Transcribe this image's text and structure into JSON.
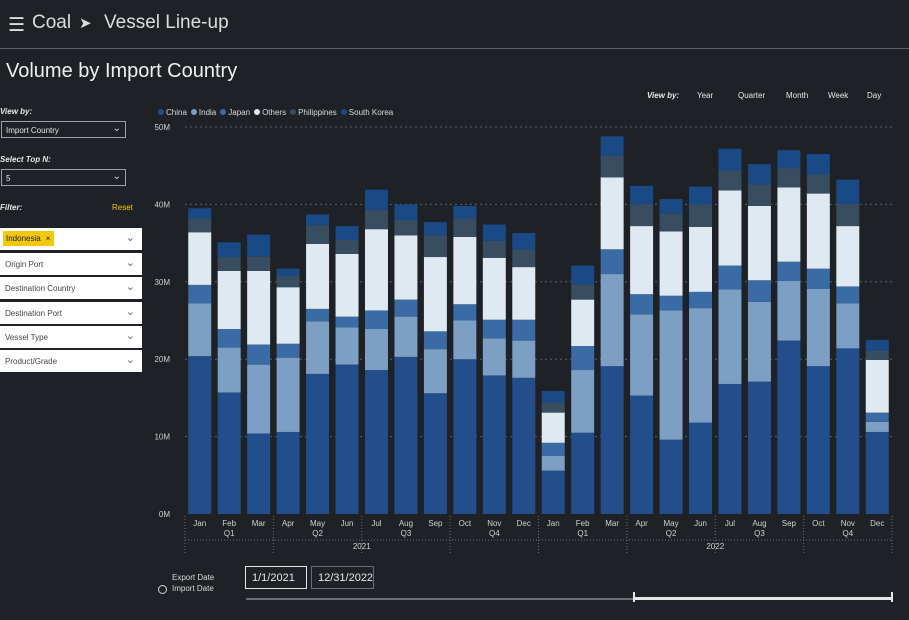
{
  "header": {
    "menu_icon": "hamburger-icon",
    "breadcrumb": [
      "Coal",
      "Vessel Line-up"
    ],
    "separator_icon": "arrow-right-icon"
  },
  "page_title": "Volume by Import Country",
  "sidebar": {
    "view_by_label": "View by:",
    "view_by_value": "Import Country",
    "top_n_label": "Select Top N:",
    "top_n_value": "5",
    "filter_label": "Filter:",
    "reset_label": "Reset",
    "filters": [
      {
        "label": "",
        "chip": "Indonesia"
      },
      {
        "label": "Origin Port"
      },
      {
        "label": "Destination Country"
      },
      {
        "label": "Destination Port"
      },
      {
        "label": "Vessel Type"
      },
      {
        "label": "Product/Grade"
      }
    ]
  },
  "view_by": {
    "label": "View by:",
    "options": [
      "Year",
      "Quarter",
      "Month",
      "Week",
      "Day"
    ]
  },
  "chart_data": {
    "type": "bar",
    "stacked": true,
    "legend_position": "top-left",
    "grid": true,
    "ylim": [
      0,
      50
    ],
    "yticks": [
      "0M",
      "10M",
      "20M",
      "30M",
      "40M",
      "50M"
    ],
    "categories": [
      "Jan",
      "Feb",
      "Mar",
      "Apr",
      "May",
      "Jun",
      "Jul",
      "Aug",
      "Sep",
      "Oct",
      "Nov",
      "Dec",
      "Jan",
      "Feb",
      "Mar",
      "Apr",
      "May",
      "Jun",
      "Jul",
      "Aug",
      "Sep",
      "Oct",
      "Nov",
      "Dec"
    ],
    "quarters": [
      {
        "label": "Q1",
        "year": "2021"
      },
      {
        "label": "Q2",
        "year": "2021"
      },
      {
        "label": "Q3",
        "year": "2021"
      },
      {
        "label": "Q4",
        "year": "2021"
      },
      {
        "label": "Q1",
        "year": "2022"
      },
      {
        "label": "Q2",
        "year": "2022"
      },
      {
        "label": "Q3",
        "year": "2022"
      },
      {
        "label": "Q4",
        "year": "2022"
      }
    ],
    "years": [
      "2021",
      "2022"
    ],
    "series": [
      {
        "name": "China",
        "color": "#234e8c",
        "values": [
          20.4,
          15.7,
          10.4,
          10.6,
          18.1,
          19.3,
          18.6,
          20.3,
          15.6,
          20.0,
          17.9,
          17.6,
          5.6,
          10.5,
          19.1,
          15.3,
          9.6,
          11.8,
          16.8,
          17.1,
          22.4,
          19.1,
          21.4,
          10.6
        ]
      },
      {
        "name": "India",
        "color": "#7d9fc3",
        "values": [
          6.8,
          5.8,
          8.9,
          9.6,
          6.8,
          4.8,
          5.3,
          5.2,
          5.7,
          5.0,
          4.8,
          4.8,
          1.9,
          8.1,
          11.9,
          10.5,
          16.7,
          14.8,
          12.2,
          10.3,
          7.7,
          10.0,
          5.8,
          1.3
        ]
      },
      {
        "name": "Japan",
        "color": "#3a6ba5",
        "values": [
          2.4,
          2.4,
          2.6,
          1.8,
          1.6,
          1.4,
          2.4,
          2.2,
          2.3,
          2.1,
          2.4,
          2.7,
          1.7,
          3.1,
          3.2,
          2.6,
          1.9,
          2.1,
          3.1,
          2.8,
          2.5,
          2.6,
          2.2,
          1.2
        ]
      },
      {
        "name": "Others",
        "color": "#dfe9f1",
        "values": [
          6.8,
          7.5,
          9.5,
          7.3,
          8.4,
          8.1,
          10.5,
          8.3,
          9.6,
          8.7,
          8.0,
          6.8,
          3.9,
          6.0,
          9.3,
          8.8,
          8.3,
          8.4,
          9.7,
          9.6,
          9.6,
          9.7,
          7.8,
          6.8
        ]
      },
      {
        "name": "Philippines",
        "color": "#384d60",
        "values": [
          1.8,
          1.8,
          1.9,
          1.5,
          2.4,
          1.8,
          2.5,
          2.0,
          2.8,
          2.4,
          2.2,
          2.3,
          1.3,
          2.0,
          2.8,
          2.8,
          2.3,
          2.9,
          2.6,
          2.8,
          2.5,
          2.5,
          2.9,
          1.2
        ]
      },
      {
        "name": "South Korea",
        "color": "#1a4a86",
        "values": [
          1.3,
          1.9,
          2.8,
          0.9,
          1.4,
          1.8,
          2.6,
          2.0,
          1.7,
          1.6,
          2.1,
          2.1,
          1.5,
          2.4,
          2.5,
          2.4,
          1.9,
          2.3,
          2.8,
          2.6,
          2.3,
          2.6,
          3.1,
          1.4
        ]
      }
    ]
  },
  "date_filter": {
    "options": [
      "Export Date",
      "Import Date"
    ],
    "start": "1/1/2021",
    "end": "12/31/2022",
    "range_start": 0.6
  }
}
